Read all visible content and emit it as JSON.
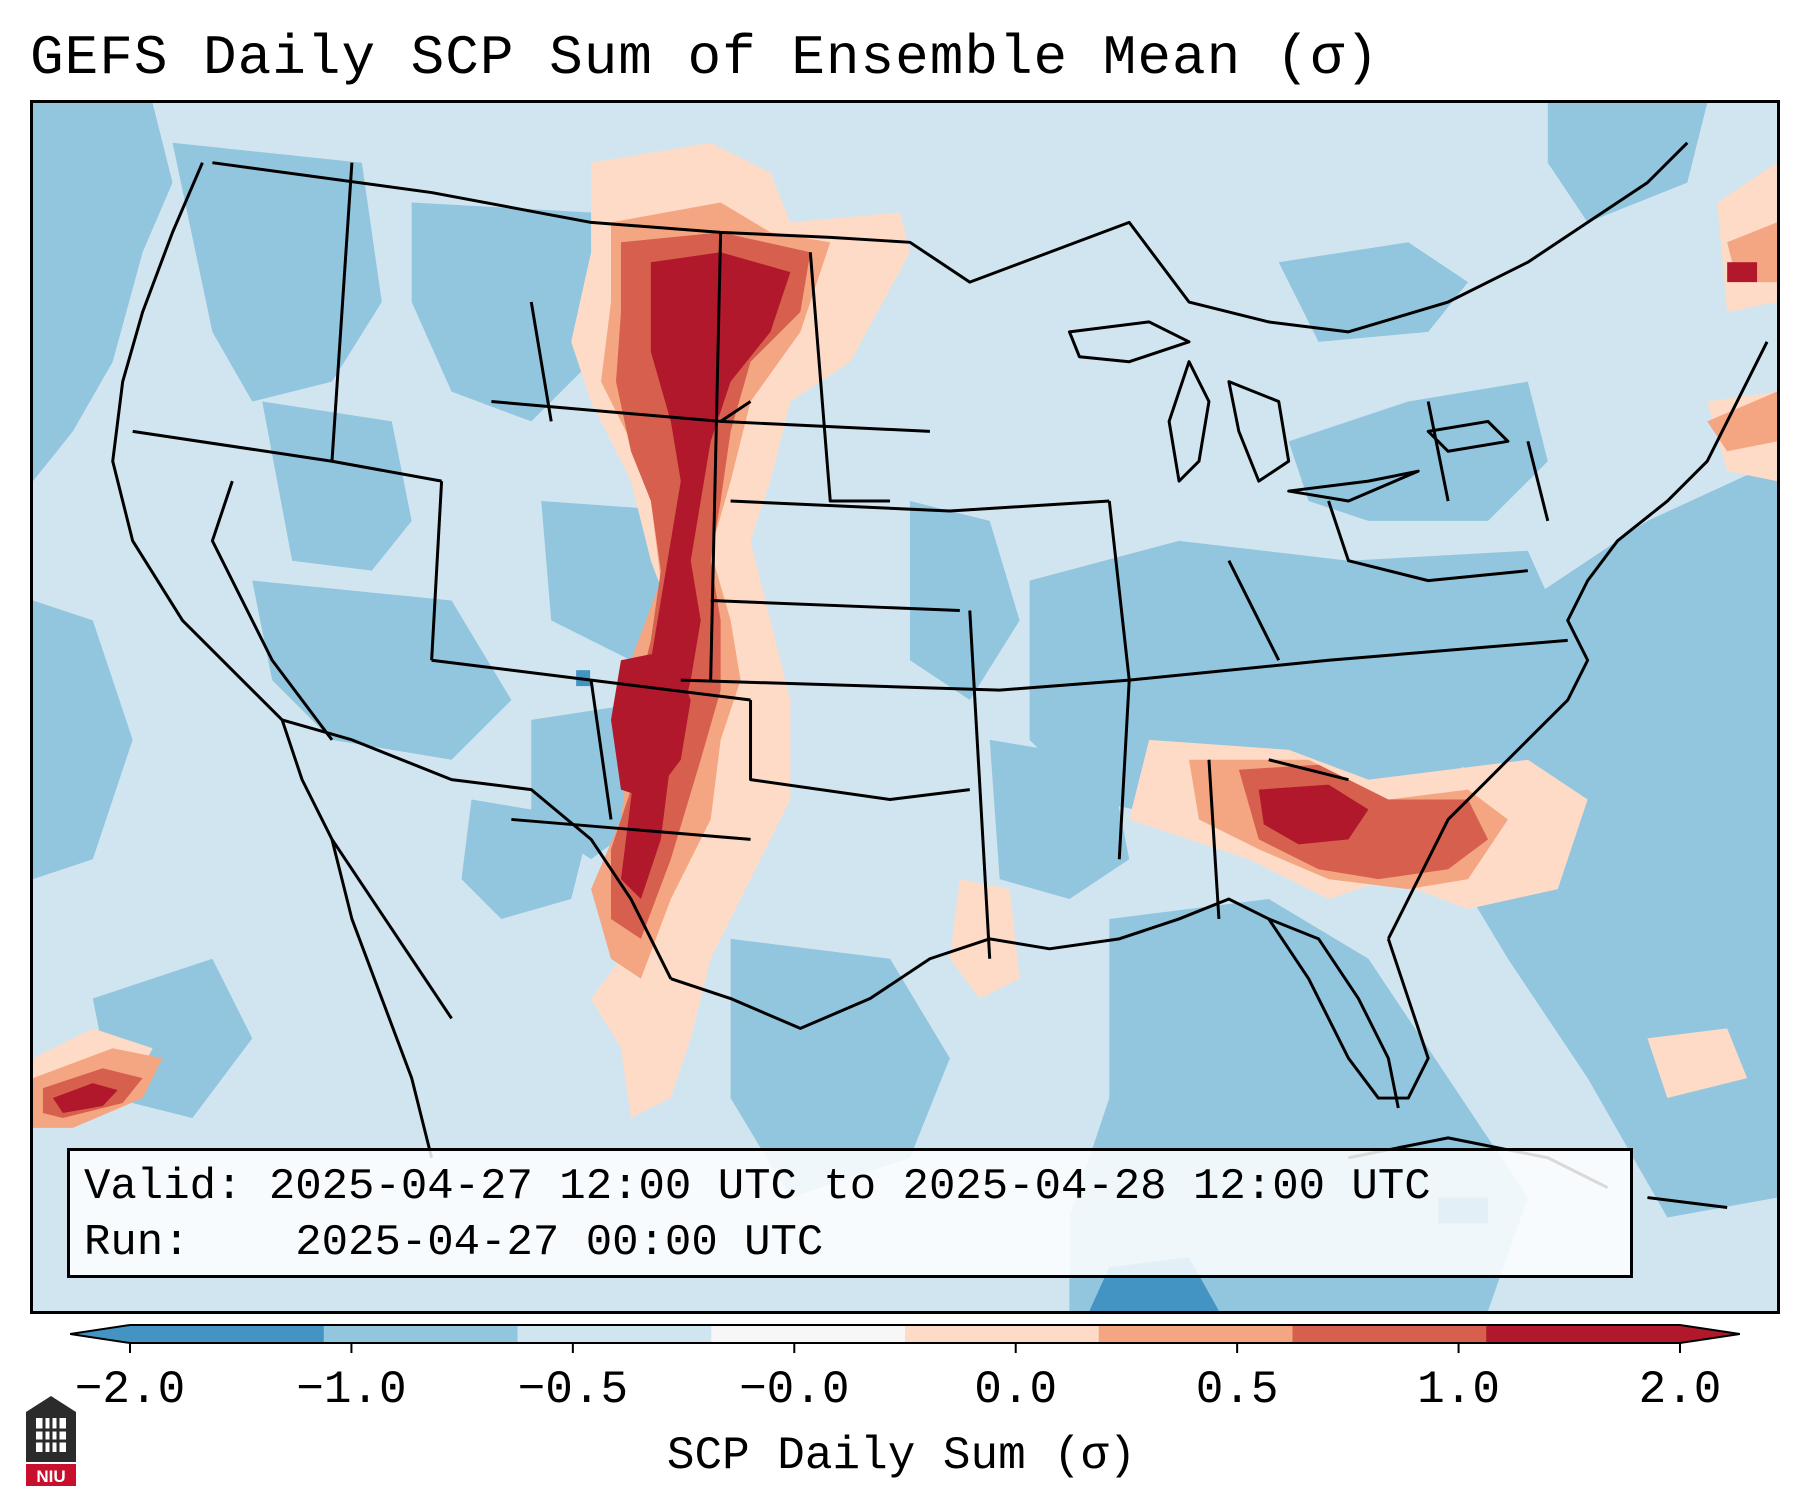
{
  "title": "GEFS Daily SCP Sum of Ensemble Mean (σ)",
  "info_box": {
    "valid_label": "Valid:",
    "valid_value": "2025-04-27 12:00 UTC to 2025-04-28 12:00 UTC",
    "run_label": "Run:",
    "run_value": "2025-04-27 00:00 UTC"
  },
  "colorbar": {
    "label": "SCP Daily Sum (σ)",
    "ticks": [
      "−2.0",
      "−1.0",
      "−0.5",
      "−0.0",
      "0.0",
      "0.5",
      "1.0",
      "2.0"
    ],
    "colors": [
      "#4393c3",
      "#92c5de",
      "#d1e5f0",
      "#f7f7f7",
      "#fddbc7",
      "#f4a582",
      "#d6604d",
      "#b2182b"
    ],
    "extend": "both"
  },
  "map": {
    "region": "CONUS",
    "projection": "Lambert conformal",
    "colors": {
      "background": "#d1e5f0",
      "moderate_negative": "#92c5de",
      "strong_negative": "#4393c3",
      "weak_positive": "#fddbc7",
      "positive": "#f4a582",
      "strong_positive": "#d6604d",
      "max_positive": "#b2182b",
      "boundaries": "#000000"
    }
  },
  "logo": {
    "text": "NIU",
    "icon": "university-logo-icon"
  }
}
